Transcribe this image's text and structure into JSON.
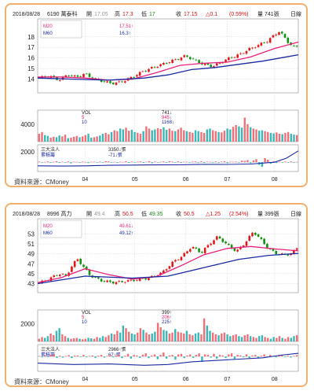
{
  "chart_data": [
    {
      "type": "candlestick",
      "header": {
        "date": "2018/08/28",
        "stock": "6190 萬泰科",
        "open_label": "開",
        "open": "17.05",
        "high_label": "高",
        "high": "17.3",
        "low_label": "低",
        "low": "17",
        "close_label": "收",
        "close": "17.15",
        "change": "△0.1",
        "pct": "(0.59%)",
        "volume": "量 741張",
        "cut": "日線"
      },
      "ma": [
        {
          "name": "M20",
          "value": "17.51↑",
          "color": "#e8207a"
        },
        {
          "name": "M60",
          "value": "16.3↑",
          "color": "#1a2aa0"
        }
      ],
      "price_ticks": [
        "18",
        "17",
        "16",
        "15",
        "14"
      ],
      "price_tick_values": [
        18,
        17,
        16,
        15,
        14
      ],
      "price_range": [
        13.0,
        18.8
      ],
      "price_start": 14.1,
      "price_path": [
        [
          0,
          14.1
        ],
        [
          10,
          14.3
        ],
        [
          18,
          13.9
        ],
        [
          25,
          14.4
        ],
        [
          33,
          14.2
        ],
        [
          40,
          14.5
        ],
        [
          48,
          14.0
        ],
        [
          55,
          13.8
        ],
        [
          62,
          13.6
        ],
        [
          70,
          13.7
        ],
        [
          80,
          14.2
        ],
        [
          90,
          14.8
        ],
        [
          100,
          15.2
        ],
        [
          110,
          15.6
        ],
        [
          118,
          15.9
        ],
        [
          125,
          16.2
        ],
        [
          132,
          15.8
        ],
        [
          140,
          15.4
        ],
        [
          148,
          15.2
        ],
        [
          155,
          15.6
        ],
        [
          162,
          16.0
        ],
        [
          170,
          16.3
        ],
        [
          178,
          16.8
        ],
        [
          186,
          17.2
        ],
        [
          194,
          17.6
        ],
        [
          200,
          18.2
        ],
        [
          204,
          18.5
        ],
        [
          208,
          18.0
        ],
        [
          212,
          17.4
        ],
        [
          216,
          17.0
        ],
        [
          220,
          17.15
        ]
      ],
      "ma20_path": [
        [
          0,
          14.2
        ],
        [
          20,
          14.2
        ],
        [
          40,
          14.1
        ],
        [
          60,
          13.9
        ],
        [
          80,
          14.0
        ],
        [
          100,
          14.6
        ],
        [
          120,
          15.3
        ],
        [
          140,
          15.5
        ],
        [
          160,
          15.6
        ],
        [
          180,
          16.1
        ],
        [
          200,
          16.9
        ],
        [
          220,
          17.5
        ]
      ],
      "ma60_path": [
        [
          0,
          14.1
        ],
        [
          30,
          14.0
        ],
        [
          60,
          13.9
        ],
        [
          90,
          14.1
        ],
        [
          110,
          14.4
        ],
        [
          130,
          14.9
        ],
        [
          150,
          15.1
        ],
        [
          170,
          15.4
        ],
        [
          190,
          15.7
        ],
        [
          210,
          16.1
        ],
        [
          220,
          16.3
        ]
      ],
      "vol": {
        "label": "VOL",
        "v1": "5",
        "v2": "10",
        "readout": [
          "741↓",
          "945↓",
          "1168↓"
        ]
      },
      "vol_tick": "4000",
      "vol_tick_value": 4000,
      "vol_range": [
        0,
        6500
      ],
      "vol_values": [
        1800,
        2200,
        1500,
        1300,
        900,
        1100,
        1000,
        1400,
        1200,
        1600,
        800,
        900,
        1100,
        1300,
        1000,
        1200,
        1500,
        1800,
        900,
        1000,
        1200,
        1400,
        1800,
        2000,
        1700,
        2200,
        2600,
        2400,
        3000,
        2800,
        3200,
        2500,
        2700,
        2200,
        2000,
        1800,
        2400,
        3500,
        3000,
        2600,
        2800,
        3100,
        2900,
        3300,
        2700,
        3000,
        2500,
        2400,
        2800,
        3200,
        2600,
        2400,
        2200,
        2000,
        2600,
        2400,
        2200,
        2000,
        2800,
        3000,
        2600,
        2400,
        2200,
        2100,
        2500,
        3000,
        2800,
        3400,
        3800,
        3500,
        3200,
        5500,
        4000,
        3300,
        3000,
        2800,
        2500,
        2600,
        2400,
        2200,
        2000,
        1900,
        2100,
        1800,
        1700,
        2000,
        2200,
        1800,
        1600,
        1500
      ],
      "inst": {
        "label1": "三大法人",
        "label2": "累積籌",
        "readout": [
          "3350↓張",
          "-71↓張"
        ]
      },
      "inst_tick": "2000",
      "inst_tick_value": 2000,
      "inst_range": [
        -1500,
        3400
      ],
      "inst_values": [
        120,
        -80,
        60,
        150,
        -100,
        80,
        200,
        -120,
        90,
        -60,
        150,
        -200,
        100,
        80,
        -90,
        120,
        60,
        -150,
        80,
        100,
        -60,
        120,
        -80,
        200,
        150,
        -100,
        80,
        -120,
        100,
        60,
        200,
        -150,
        120,
        -80,
        100,
        150,
        -120,
        90,
        200,
        -180,
        120,
        -60,
        80,
        150,
        -100,
        200,
        120,
        -80,
        160,
        -120,
        100,
        80,
        -60,
        120,
        150,
        -90,
        200,
        -130,
        110,
        80,
        -100,
        150,
        -70,
        120,
        200,
        -150,
        100,
        80,
        120,
        -100,
        300,
        250,
        400,
        -200,
        350,
        600,
        -500,
        -900,
        800,
        500,
        -300,
        200,
        -150,
        100,
        -80,
        120,
        -60,
        150,
        -100,
        80
      ],
      "inst_cum": [
        [
          0,
          -700
        ],
        [
          20,
          -750
        ],
        [
          40,
          -700
        ],
        [
          60,
          -600
        ],
        [
          80,
          -550
        ],
        [
          100,
          -520
        ],
        [
          120,
          -500
        ],
        [
          140,
          -420
        ],
        [
          160,
          -430
        ],
        [
          180,
          -350
        ],
        [
          200,
          0
        ],
        [
          210,
          800
        ],
        [
          220,
          2200
        ]
      ],
      "x_ticks": [
        {
          "label": "04",
          "value": 40
        },
        {
          "label": "05",
          "value": 82
        },
        {
          "label": "06",
          "value": 125
        },
        {
          "label": "07",
          "value": 160
        },
        {
          "label": "08",
          "value": 200
        }
      ],
      "x_range": [
        0,
        220
      ]
    },
    {
      "type": "candlestick",
      "header": {
        "date": "2018/08/28",
        "stock": "8996 高力",
        "open_label": "開",
        "open": "49.4",
        "high_label": "高",
        "high": "50.5",
        "low_label": "低",
        "low": "49.35",
        "close_label": "收",
        "close": "50.5",
        "change": "△1.25",
        "pct": "(2.54%)",
        "volume": "量 399張",
        "cut": "日線"
      },
      "ma": [
        {
          "name": "M20",
          "value": "49.61↓",
          "color": "#e8207a"
        },
        {
          "name": "M60",
          "value": "49.12↑",
          "color": "#1a2aa0"
        }
      ],
      "price_ticks": [
        "53",
        "51",
        "49",
        "47",
        "45",
        "43"
      ],
      "price_tick_values": [
        53,
        51,
        49,
        47,
        45,
        43
      ],
      "price_range": [
        41.8,
        54.2
      ],
      "price_start": 43.0,
      "price_path": [
        [
          0,
          43.0
        ],
        [
          10,
          44.0
        ],
        [
          18,
          45.0
        ],
        [
          24,
          44.5
        ],
        [
          30,
          47.0
        ],
        [
          34,
          48.0
        ],
        [
          38,
          46.5
        ],
        [
          45,
          44.5
        ],
        [
          55,
          43.5
        ],
        [
          65,
          43.2
        ],
        [
          75,
          43.5
        ],
        [
          85,
          43.8
        ],
        [
          95,
          44.2
        ],
        [
          105,
          45.2
        ],
        [
          115,
          47.5
        ],
        [
          122,
          48.5
        ],
        [
          130,
          50.5
        ],
        [
          138,
          49.2
        ],
        [
          145,
          51.0
        ],
        [
          152,
          52.5
        ],
        [
          160,
          50.8
        ],
        [
          168,
          49.5
        ],
        [
          175,
          51.2
        ],
        [
          182,
          53.5
        ],
        [
          188,
          52.0
        ],
        [
          195,
          50.0
        ],
        [
          202,
          49.0
        ],
        [
          210,
          48.8
        ],
        [
          215,
          49.2
        ],
        [
          220,
          50.5
        ]
      ],
      "ma20_path": [
        [
          0,
          43.2
        ],
        [
          20,
          44.2
        ],
        [
          40,
          46.0
        ],
        [
          60,
          44.8
        ],
        [
          80,
          43.9
        ],
        [
          100,
          44.4
        ],
        [
          120,
          46.5
        ],
        [
          140,
          48.8
        ],
        [
          160,
          50.1
        ],
        [
          180,
          50.5
        ],
        [
          200,
          50.0
        ],
        [
          220,
          49.6
        ]
      ],
      "ma60_path": [
        [
          0,
          43.0
        ],
        [
          40,
          44.5
        ],
        [
          80,
          44.1
        ],
        [
          110,
          44.5
        ],
        [
          140,
          46.2
        ],
        [
          170,
          47.9
        ],
        [
          195,
          48.7
        ],
        [
          220,
          49.1
        ]
      ],
      "vol": {
        "label": "VOL",
        "v1": "5",
        "v2": "10",
        "readout": [
          "399↑",
          "206↑",
          "225↑"
        ]
      },
      "vol_tick": "2000",
      "vol_tick_value": 2000,
      "vol_range": [
        0,
        3200
      ],
      "vol_values": [
        300,
        500,
        400,
        600,
        900,
        700,
        1200,
        1500,
        800,
        600,
        400,
        300,
        350,
        400,
        300,
        250,
        300,
        400,
        350,
        300,
        500,
        400,
        600,
        500,
        700,
        900,
        800,
        1200,
        1000,
        1800,
        1500,
        1100,
        900,
        800,
        1000,
        1500,
        1300,
        1000,
        800,
        900,
        1100,
        2100,
        1600,
        1300,
        1200,
        900,
        1000,
        1400,
        1100,
        1000,
        900,
        1200,
        800,
        700,
        900,
        1000,
        800,
        2600,
        1800,
        1200,
        1000,
        800,
        700,
        900,
        1000,
        800,
        600,
        700,
        800,
        600,
        500,
        700,
        800,
        600,
        500,
        400,
        600,
        700,
        500,
        400,
        300,
        500,
        400,
        600,
        400,
        300,
        500,
        400,
        600,
        700
      ],
      "inst": {
        "label1": "三大法人",
        "label2": "累積籌",
        "readout": [
          "2966↑張",
          "67↑張"
        ]
      },
      "inst_tick": "",
      "inst_tick_value": 0,
      "inst_range": [
        -500,
        450
      ],
      "inst_values": [
        20,
        -30,
        40,
        -20,
        60,
        80,
        -50,
        30,
        -40,
        20,
        50,
        -60,
        30,
        40,
        -20,
        60,
        -30,
        20,
        40,
        -50,
        30,
        60,
        -40,
        20,
        50,
        -30,
        40,
        80,
        -60,
        30,
        100,
        -80,
        60,
        40,
        -50,
        70,
        120,
        -60,
        40,
        80,
        -100,
        60,
        150,
        -80,
        40,
        60,
        -120,
        80,
        100,
        -60,
        40,
        80,
        -50,
        60,
        120,
        -200,
        80,
        60,
        -40,
        100,
        -80,
        60,
        40,
        -60,
        80,
        120,
        -90,
        60,
        40,
        -30,
        80,
        -60,
        40,
        60,
        -50,
        30,
        80,
        -40,
        60,
        20,
        -30,
        40,
        60,
        -20,
        30,
        -40,
        20,
        50
      ],
      "inst_cum": [
        [
          0,
          -250
        ],
        [
          30,
          -300
        ],
        [
          60,
          -280
        ],
        [
          90,
          -330
        ],
        [
          110,
          -300
        ],
        [
          130,
          -200
        ],
        [
          150,
          -150
        ],
        [
          170,
          -100
        ],
        [
          190,
          -50
        ],
        [
          205,
          50
        ],
        [
          220,
          120
        ]
      ],
      "x_ticks": [
        {
          "label": "04",
          "value": 40
        },
        {
          "label": "05",
          "value": 82
        },
        {
          "label": "06",
          "value": 125
        },
        {
          "label": "07",
          "value": 160
        },
        {
          "label": "08",
          "value": 200
        }
      ],
      "x_range": [
        0,
        220
      ]
    }
  ],
  "source": [
    "資料來源：CMoney",
    "資料來源：CMoney"
  ]
}
